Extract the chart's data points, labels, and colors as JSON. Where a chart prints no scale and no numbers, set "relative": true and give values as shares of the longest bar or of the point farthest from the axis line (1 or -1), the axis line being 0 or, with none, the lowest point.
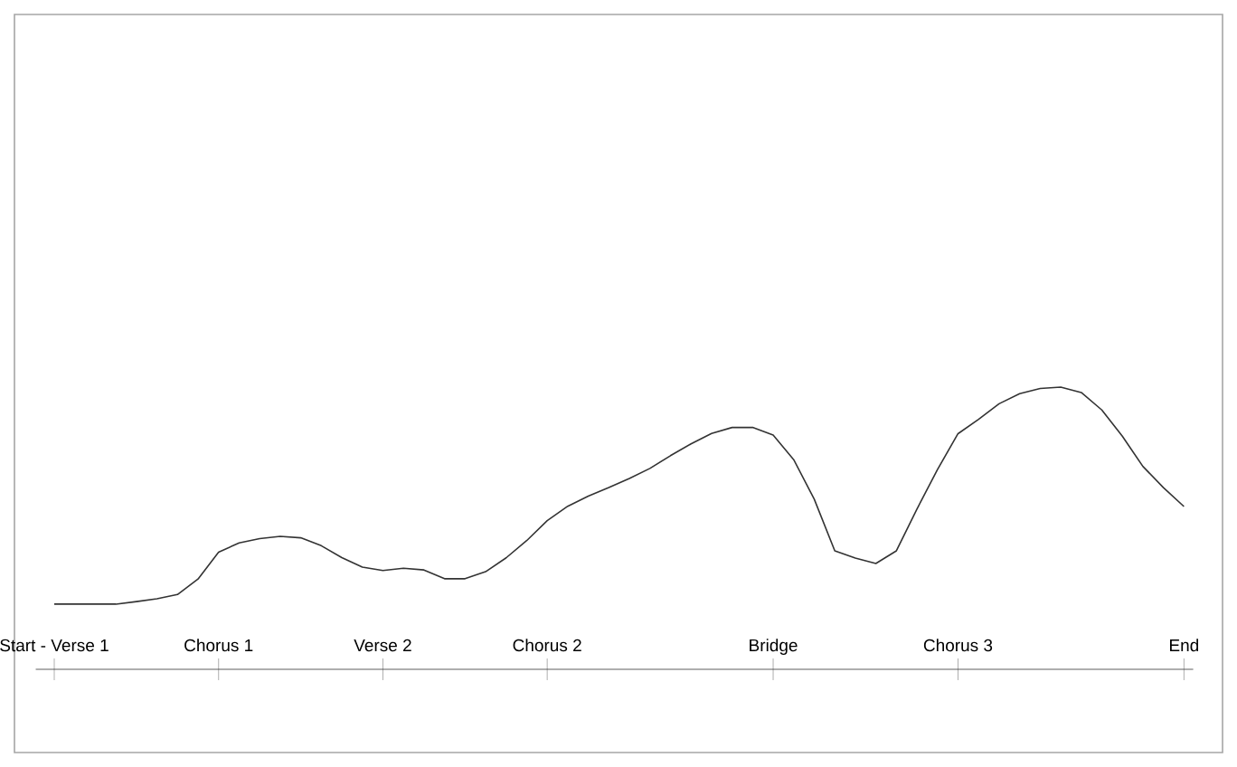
{
  "chart_data": {
    "type": "line",
    "relative": true,
    "color": "#333333",
    "categories": [
      "Start - Verse 1",
      null,
      null,
      null,
      null,
      null,
      null,
      null,
      "Chorus 1",
      null,
      null,
      null,
      null,
      null,
      null,
      null,
      "Verse 2",
      null,
      null,
      null,
      null,
      null,
      null,
      null,
      "Chorus 2",
      null,
      null,
      null,
      null,
      null,
      null,
      null,
      null,
      null,
      null,
      "Bridge",
      null,
      null,
      null,
      null,
      null,
      null,
      null,
      null,
      "Chorus 3",
      null,
      null,
      null,
      null,
      null,
      null,
      null,
      null,
      null,
      null,
      "End"
    ],
    "values": [
      0.231,
      0.231,
      0.231,
      0.231,
      0.24,
      0.25,
      0.265,
      0.32,
      0.415,
      0.448,
      0.463,
      0.471,
      0.466,
      0.438,
      0.396,
      0.362,
      0.35,
      0.358,
      0.352,
      0.321,
      0.321,
      0.346,
      0.395,
      0.456,
      0.527,
      0.578,
      0.614,
      0.644,
      0.676,
      0.712,
      0.757,
      0.799,
      0.836,
      0.857,
      0.857,
      0.83,
      0.743,
      0.603,
      0.42,
      0.394,
      0.375,
      0.42,
      0.568,
      0.708,
      0.835,
      0.886,
      0.941,
      0.977,
      0.995,
      1,
      0.981,
      0.919,
      0.826,
      0.719,
      0.644,
      0.577
    ]
  }
}
